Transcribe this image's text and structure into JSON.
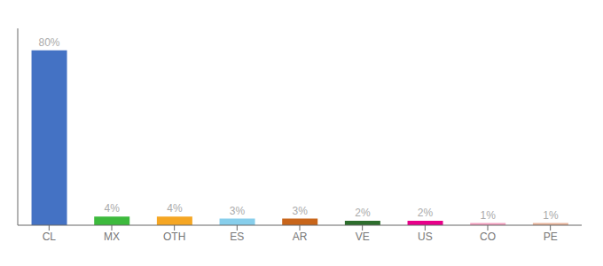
{
  "chart_data": {
    "type": "bar",
    "categories": [
      "CL",
      "MX",
      "OTH",
      "ES",
      "AR",
      "VE",
      "US",
      "CO",
      "PE"
    ],
    "values": [
      80,
      4,
      4,
      3,
      3,
      2,
      2,
      1,
      1
    ],
    "value_labels": [
      "80%",
      "4%",
      "4%",
      "3%",
      "3%",
      "2%",
      "2%",
      "1%",
      "1%"
    ],
    "data_labels": true,
    "colors": [
      "#4472c4",
      "#3dba3d",
      "#f5a623",
      "#87ceeb",
      "#c8651a",
      "#2d6e2d",
      "#e8008a",
      "#f4a0c0",
      "#e8b49a"
    ],
    "ylim": [
      0,
      90
    ],
    "tick_labels": "x"
  }
}
